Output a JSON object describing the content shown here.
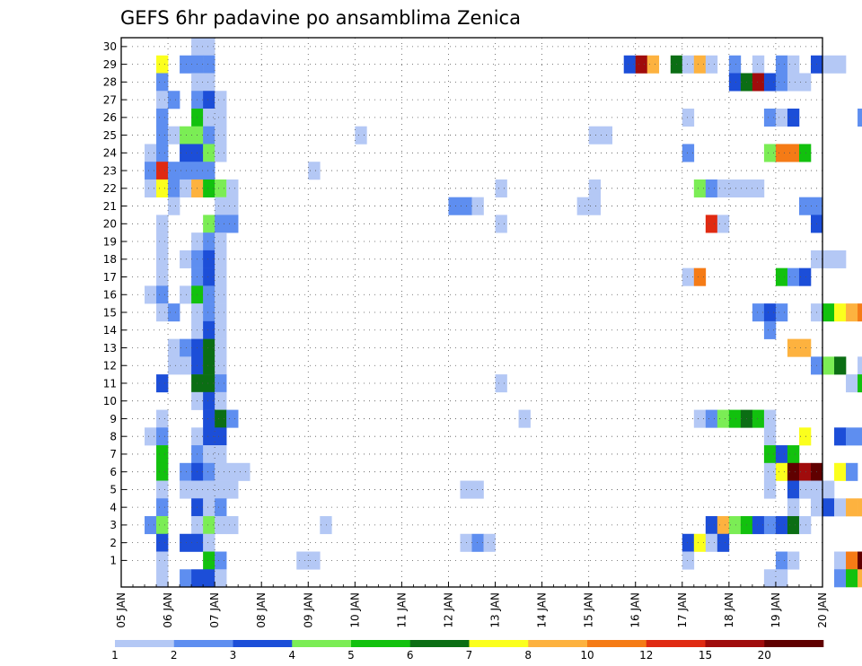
{
  "chart_data": {
    "type": "heatmap",
    "title": "GEFS 6hr padavine po ansamblima Zenica",
    "x_tick_labels": [
      "05 JAN",
      "06 JAN",
      "07 JAN",
      "08 JAN",
      "09 JAN",
      "10 JAN",
      "11 JAN",
      "12 JAN",
      "13 JAN",
      "14 JAN",
      "15 JAN",
      "16 JAN",
      "17 JAN",
      "18 JAN",
      "19 JAN",
      "20 JAN"
    ],
    "y_tick_labels": [
      "1",
      "2",
      "3",
      "4",
      "5",
      "6",
      "7",
      "8",
      "9",
      "10",
      "11",
      "12",
      "13",
      "14",
      "15",
      "16",
      "17",
      "18",
      "19",
      "20",
      "21",
      "22",
      "23",
      "24",
      "25",
      "26",
      "27",
      "28",
      "29",
      "30"
    ],
    "x_range_days": [
      0,
      15
    ],
    "y_range_members": [
      0,
      30
    ],
    "time_step_hours": 6,
    "grid": "dotted",
    "colorbar": {
      "labels": [
        "1",
        "2",
        "3",
        "4",
        "5",
        "6",
        "7",
        "8",
        "10",
        "12",
        "15",
        "20"
      ],
      "colors": [
        "#b4c8f5",
        "#5e8ef0",
        "#1c4ed8",
        "#7bed55",
        "#12c10e",
        "#0b6e14",
        "#fbff1d",
        "#fdb23f",
        "#f57b16",
        "#e02a12",
        "#a00c0c",
        "#600000"
      ]
    },
    "cells_note": "each row is [member, start_step, end_step, category_index]",
    "cells": [
      [
        30,
        6,
        7,
        0
      ],
      [
        29,
        3,
        3,
        6
      ],
      [
        29,
        5,
        6,
        1
      ],
      [
        29,
        7,
        7,
        1
      ],
      [
        29,
        43,
        43,
        2
      ],
      [
        29,
        44,
        44,
        10
      ],
      [
        29,
        45,
        45,
        7
      ],
      [
        29,
        47,
        47,
        5
      ],
      [
        29,
        48,
        48,
        0
      ],
      [
        29,
        49,
        49,
        7
      ],
      [
        29,
        50,
        50,
        0
      ],
      [
        29,
        52,
        52,
        1
      ],
      [
        29,
        54,
        54,
        0
      ],
      [
        29,
        56,
        56,
        1
      ],
      [
        29,
        57,
        57,
        0
      ],
      [
        29,
        59,
        59,
        2
      ],
      [
        29,
        60,
        61,
        0
      ],
      [
        28,
        3,
        3,
        1
      ],
      [
        28,
        6,
        7,
        0
      ],
      [
        28,
        52,
        52,
        2
      ],
      [
        28,
        53,
        53,
        5
      ],
      [
        28,
        54,
        54,
        10
      ],
      [
        28,
        55,
        55,
        2
      ],
      [
        28,
        56,
        56,
        1
      ],
      [
        28,
        57,
        58,
        0
      ],
      [
        27,
        3,
        3,
        0
      ],
      [
        27,
        4,
        4,
        1
      ],
      [
        27,
        6,
        6,
        1
      ],
      [
        27,
        7,
        7,
        2
      ],
      [
        27,
        8,
        8,
        0
      ],
      [
        26,
        3,
        3,
        1
      ],
      [
        26,
        6,
        6,
        4
      ],
      [
        26,
        7,
        8,
        0
      ],
      [
        26,
        48,
        48,
        0
      ],
      [
        26,
        55,
        55,
        1
      ],
      [
        26,
        56,
        56,
        0
      ],
      [
        26,
        57,
        57,
        2
      ],
      [
        26,
        63,
        63,
        1
      ],
      [
        25,
        3,
        3,
        1
      ],
      [
        25,
        4,
        4,
        0
      ],
      [
        25,
        5,
        6,
        3
      ],
      [
        25,
        7,
        7,
        1
      ],
      [
        25,
        8,
        8,
        0
      ],
      [
        25,
        20,
        20,
        0
      ],
      [
        25,
        40,
        41,
        0
      ],
      [
        24,
        2,
        2,
        0
      ],
      [
        24,
        3,
        3,
        1
      ],
      [
        24,
        5,
        6,
        2
      ],
      [
        24,
        7,
        7,
        3
      ],
      [
        24,
        8,
        8,
        0
      ],
      [
        24,
        48,
        48,
        1
      ],
      [
        24,
        55,
        55,
        3
      ],
      [
        24,
        56,
        57,
        8
      ],
      [
        24,
        58,
        58,
        4
      ],
      [
        23,
        2,
        2,
        1
      ],
      [
        23,
        3,
        3,
        9
      ],
      [
        23,
        4,
        4,
        1
      ],
      [
        23,
        5,
        7,
        1
      ],
      [
        23,
        16,
        16,
        0
      ],
      [
        22,
        2,
        2,
        0
      ],
      [
        22,
        3,
        3,
        6
      ],
      [
        22,
        4,
        4,
        1
      ],
      [
        22,
        5,
        5,
        0
      ],
      [
        22,
        6,
        6,
        7
      ],
      [
        22,
        7,
        7,
        4
      ],
      [
        22,
        8,
        8,
        3
      ],
      [
        22,
        9,
        9,
        0
      ],
      [
        22,
        32,
        32,
        0
      ],
      [
        22,
        40,
        40,
        0
      ],
      [
        22,
        49,
        49,
        3
      ],
      [
        22,
        50,
        50,
        1
      ],
      [
        22,
        51,
        54,
        0
      ],
      [
        21,
        4,
        4,
        0
      ],
      [
        21,
        8,
        9,
        0
      ],
      [
        21,
        28,
        29,
        1
      ],
      [
        21,
        30,
        30,
        0
      ],
      [
        21,
        39,
        40,
        0
      ],
      [
        21,
        58,
        59,
        1
      ],
      [
        20,
        3,
        3,
        0
      ],
      [
        20,
        7,
        7,
        3
      ],
      [
        20,
        8,
        9,
        1
      ],
      [
        20,
        32,
        32,
        0
      ],
      [
        20,
        50,
        50,
        9
      ],
      [
        20,
        51,
        51,
        0
      ],
      [
        20,
        59,
        59,
        2
      ],
      [
        19,
        3,
        3,
        0
      ],
      [
        19,
        6,
        6,
        0
      ],
      [
        19,
        7,
        7,
        1
      ],
      [
        19,
        8,
        8,
        0
      ],
      [
        18,
        3,
        3,
        0
      ],
      [
        18,
        5,
        5,
        0
      ],
      [
        18,
        6,
        6,
        1
      ],
      [
        18,
        7,
        7,
        2
      ],
      [
        18,
        8,
        8,
        0
      ],
      [
        18,
        59,
        61,
        0
      ],
      [
        17,
        3,
        3,
        0
      ],
      [
        17,
        6,
        6,
        1
      ],
      [
        17,
        7,
        7,
        2
      ],
      [
        17,
        8,
        8,
        0
      ],
      [
        17,
        48,
        48,
        0
      ],
      [
        17,
        49,
        49,
        8
      ],
      [
        17,
        56,
        56,
        4
      ],
      [
        17,
        57,
        57,
        1
      ],
      [
        17,
        58,
        58,
        2
      ],
      [
        16,
        2,
        2,
        0
      ],
      [
        16,
        3,
        3,
        1
      ],
      [
        16,
        5,
        5,
        0
      ],
      [
        16,
        6,
        6,
        4
      ],
      [
        16,
        7,
        7,
        1
      ],
      [
        16,
        8,
        8,
        0
      ],
      [
        15,
        3,
        3,
        0
      ],
      [
        15,
        4,
        4,
        1
      ],
      [
        15,
        6,
        6,
        0
      ],
      [
        15,
        7,
        7,
        1
      ],
      [
        15,
        8,
        8,
        0
      ],
      [
        15,
        54,
        54,
        1
      ],
      [
        15,
        55,
        55,
        2
      ],
      [
        15,
        56,
        56,
        1
      ],
      [
        15,
        59,
        59,
        0
      ],
      [
        15,
        60,
        60,
        4
      ],
      [
        15,
        61,
        61,
        6
      ],
      [
        15,
        62,
        62,
        7
      ],
      [
        15,
        63,
        63,
        8
      ],
      [
        15,
        64,
        64,
        2
      ],
      [
        15,
        65,
        65,
        1
      ],
      [
        14,
        6,
        6,
        0
      ],
      [
        14,
        7,
        7,
        2
      ],
      [
        14,
        8,
        8,
        0
      ],
      [
        14,
        55,
        55,
        1
      ],
      [
        14,
        65,
        65,
        8
      ],
      [
        13,
        4,
        4,
        0
      ],
      [
        13,
        5,
        5,
        1
      ],
      [
        13,
        6,
        6,
        2
      ],
      [
        13,
        7,
        7,
        5
      ],
      [
        13,
        8,
        8,
        0
      ],
      [
        13,
        57,
        58,
        7
      ],
      [
        13,
        65,
        65,
        8
      ],
      [
        12,
        4,
        4,
        0
      ],
      [
        12,
        5,
        5,
        0
      ],
      [
        12,
        6,
        6,
        2
      ],
      [
        12,
        7,
        7,
        5
      ],
      [
        12,
        8,
        8,
        0
      ],
      [
        12,
        59,
        59,
        1
      ],
      [
        12,
        60,
        60,
        3
      ],
      [
        12,
        61,
        61,
        5
      ],
      [
        12,
        63,
        63,
        0
      ],
      [
        12,
        65,
        65,
        1
      ],
      [
        11,
        3,
        3,
        2
      ],
      [
        11,
        6,
        7,
        5
      ],
      [
        11,
        8,
        8,
        1
      ],
      [
        11,
        32,
        32,
        0
      ],
      [
        11,
        62,
        62,
        0
      ],
      [
        11,
        63,
        63,
        4
      ],
      [
        11,
        64,
        64,
        1
      ],
      [
        11,
        65,
        65,
        11
      ],
      [
        10,
        6,
        6,
        0
      ],
      [
        10,
        7,
        7,
        2
      ],
      [
        10,
        8,
        8,
        0
      ],
      [
        9,
        3,
        3,
        0
      ],
      [
        9,
        7,
        7,
        2
      ],
      [
        9,
        8,
        8,
        5
      ],
      [
        9,
        9,
        9,
        1
      ],
      [
        9,
        34,
        34,
        0
      ],
      [
        9,
        49,
        49,
        0
      ],
      [
        9,
        50,
        50,
        1
      ],
      [
        9,
        51,
        51,
        3
      ],
      [
        9,
        52,
        52,
        4
      ],
      [
        9,
        53,
        53,
        5
      ],
      [
        9,
        54,
        54,
        4
      ],
      [
        9,
        55,
        55,
        0
      ],
      [
        9,
        64,
        64,
        0
      ],
      [
        9,
        65,
        65,
        5
      ],
      [
        8,
        2,
        2,
        0
      ],
      [
        8,
        3,
        3,
        1
      ],
      [
        8,
        6,
        6,
        0
      ],
      [
        8,
        7,
        8,
        2
      ],
      [
        8,
        55,
        55,
        0
      ],
      [
        8,
        58,
        58,
        6
      ],
      [
        8,
        61,
        61,
        2
      ],
      [
        8,
        62,
        63,
        1
      ],
      [
        8,
        64,
        64,
        0
      ],
      [
        7,
        3,
        3,
        4
      ],
      [
        7,
        6,
        6,
        1
      ],
      [
        7,
        7,
        7,
        0
      ],
      [
        7,
        8,
        8,
        0
      ],
      [
        7,
        55,
        55,
        4
      ],
      [
        7,
        56,
        56,
        2
      ],
      [
        7,
        57,
        57,
        4
      ],
      [
        6,
        3,
        3,
        4
      ],
      [
        6,
        5,
        5,
        1
      ],
      [
        6,
        6,
        6,
        2
      ],
      [
        6,
        7,
        7,
        1
      ],
      [
        6,
        8,
        10,
        0
      ],
      [
        6,
        55,
        55,
        0
      ],
      [
        6,
        56,
        56,
        6
      ],
      [
        6,
        57,
        57,
        11
      ],
      [
        6,
        58,
        58,
        10
      ],
      [
        6,
        59,
        59,
        11
      ],
      [
        6,
        61,
        61,
        6
      ],
      [
        6,
        62,
        62,
        1
      ],
      [
        5,
        3,
        3,
        0
      ],
      [
        5,
        5,
        5,
        0
      ],
      [
        5,
        6,
        7,
        0
      ],
      [
        5,
        8,
        9,
        0
      ],
      [
        5,
        29,
        30,
        0
      ],
      [
        5,
        55,
        55,
        0
      ],
      [
        5,
        57,
        57,
        2
      ],
      [
        5,
        58,
        60,
        0
      ],
      [
        4,
        3,
        3,
        1
      ],
      [
        4,
        6,
        6,
        2
      ],
      [
        4,
        7,
        7,
        0
      ],
      [
        4,
        8,
        8,
        1
      ],
      [
        4,
        57,
        57,
        0
      ],
      [
        4,
        59,
        59,
        0
      ],
      [
        4,
        60,
        60,
        2
      ],
      [
        4,
        61,
        61,
        0
      ],
      [
        4,
        62,
        62,
        7
      ],
      [
        4,
        63,
        63,
        7
      ],
      [
        3,
        2,
        2,
        1
      ],
      [
        3,
        3,
        3,
        3
      ],
      [
        3,
        6,
        6,
        0
      ],
      [
        3,
        7,
        7,
        3
      ],
      [
        3,
        8,
        8,
        0
      ],
      [
        3,
        9,
        9,
        0
      ],
      [
        3,
        17,
        17,
        0
      ],
      [
        3,
        50,
        50,
        2
      ],
      [
        3,
        51,
        51,
        7
      ],
      [
        3,
        52,
        52,
        3
      ],
      [
        3,
        53,
        53,
        4
      ],
      [
        3,
        54,
        54,
        2
      ],
      [
        3,
        55,
        55,
        1
      ],
      [
        3,
        56,
        56,
        2
      ],
      [
        3,
        57,
        57,
        5
      ],
      [
        3,
        58,
        58,
        0
      ],
      [
        2,
        3,
        3,
        2
      ],
      [
        2,
        5,
        6,
        2
      ],
      [
        2,
        7,
        7,
        0
      ],
      [
        2,
        29,
        29,
        0
      ],
      [
        2,
        30,
        30,
        1
      ],
      [
        2,
        31,
        31,
        0
      ],
      [
        2,
        48,
        48,
        2
      ],
      [
        2,
        49,
        49,
        6
      ],
      [
        2,
        50,
        50,
        0
      ],
      [
        2,
        51,
        51,
        2
      ],
      [
        2,
        65,
        65,
        2
      ],
      [
        1,
        3,
        3,
        0
      ],
      [
        1,
        7,
        7,
        4
      ],
      [
        1,
        8,
        8,
        1
      ],
      [
        1,
        15,
        16,
        0
      ],
      [
        1,
        48,
        48,
        0
      ],
      [
        1,
        56,
        56,
        1
      ],
      [
        1,
        57,
        57,
        0
      ],
      [
        1,
        61,
        61,
        0
      ],
      [
        1,
        62,
        62,
        8
      ],
      [
        1,
        63,
        63,
        11
      ],
      [
        1,
        64,
        65,
        11
      ],
      [
        0,
        3,
        3,
        0
      ],
      [
        0,
        5,
        5,
        1
      ],
      [
        0,
        6,
        7,
        2
      ],
      [
        0,
        8,
        8,
        0
      ],
      [
        0,
        55,
        56,
        0
      ],
      [
        0,
        61,
        61,
        1
      ],
      [
        0,
        62,
        62,
        4
      ],
      [
        0,
        63,
        63,
        7
      ],
      [
        0,
        64,
        64,
        8
      ],
      [
        0,
        65,
        65,
        11
      ]
    ]
  }
}
